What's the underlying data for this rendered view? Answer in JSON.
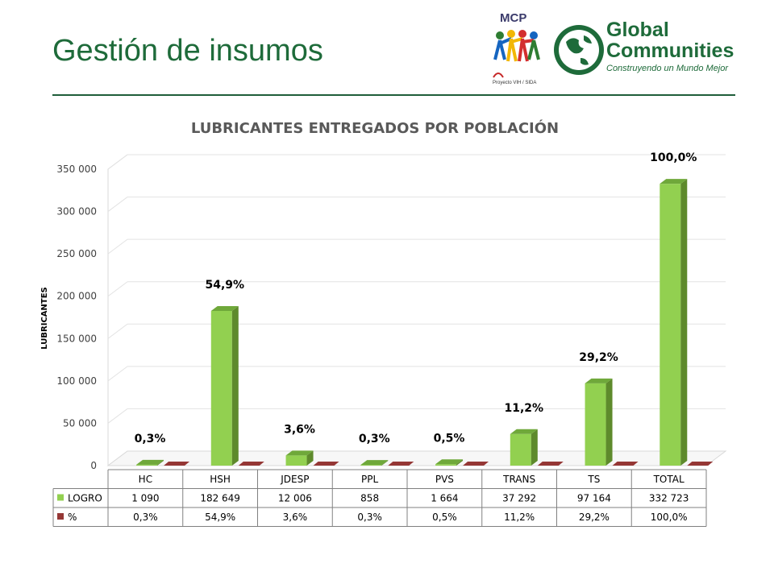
{
  "header": {
    "title": "Gestión de insumos"
  },
  "logos": {
    "mcp": {
      "name": "MCP",
      "subtitle": "Proyecto VIH / SIDA"
    },
    "global_communities": {
      "line1": "Global",
      "line2": "Communities",
      "tagline": "Construyendo un Mundo Mejor"
    }
  },
  "colors": {
    "title_green": "#1e6b3a",
    "logro_bar": "#92d050",
    "pct_bar": "#953735"
  },
  "chart_data": {
    "type": "bar",
    "title": "LUBRICANTES ENTREGADOS POR POBLACIÓN",
    "ylabel": "LUBRICANTES",
    "xlabel": "",
    "ylim": [
      0,
      350000
    ],
    "yticks": [
      0,
      50000,
      100000,
      150000,
      200000,
      250000,
      300000,
      350000
    ],
    "ytick_labels": [
      "0",
      "50 000",
      "100 000",
      "150 000",
      "200 000",
      "250 000",
      "300 000",
      "350 000"
    ],
    "categories": [
      "HC",
      "HSH",
      "JDESP",
      "PPL",
      "PVS",
      "TRANS",
      "TS",
      "TOTAL"
    ],
    "series": [
      {
        "name": "LOGRO",
        "values": [
          1090,
          182649,
          12006,
          858,
          1664,
          37292,
          97164,
          332723
        ],
        "labels": [
          "1 090",
          "182 649",
          "12 006",
          "858",
          "1 664",
          "37 292",
          "97 164",
          "332 723"
        ]
      },
      {
        "name": "%",
        "values": [
          0.3,
          54.9,
          3.6,
          0.3,
          0.5,
          11.2,
          29.2,
          100.0
        ],
        "labels": [
          "0,3%",
          "54,9%",
          "3,6%",
          "0,3%",
          "0,5%",
          "11,2%",
          "29,2%",
          "100,0%"
        ]
      }
    ],
    "data_labels": [
      "0,3%",
      "54,9%",
      "3,6%",
      "0,3%",
      "0,5%",
      "11,2%",
      "29,2%",
      "100,0%"
    ],
    "grid": true,
    "legend": "data-table"
  }
}
